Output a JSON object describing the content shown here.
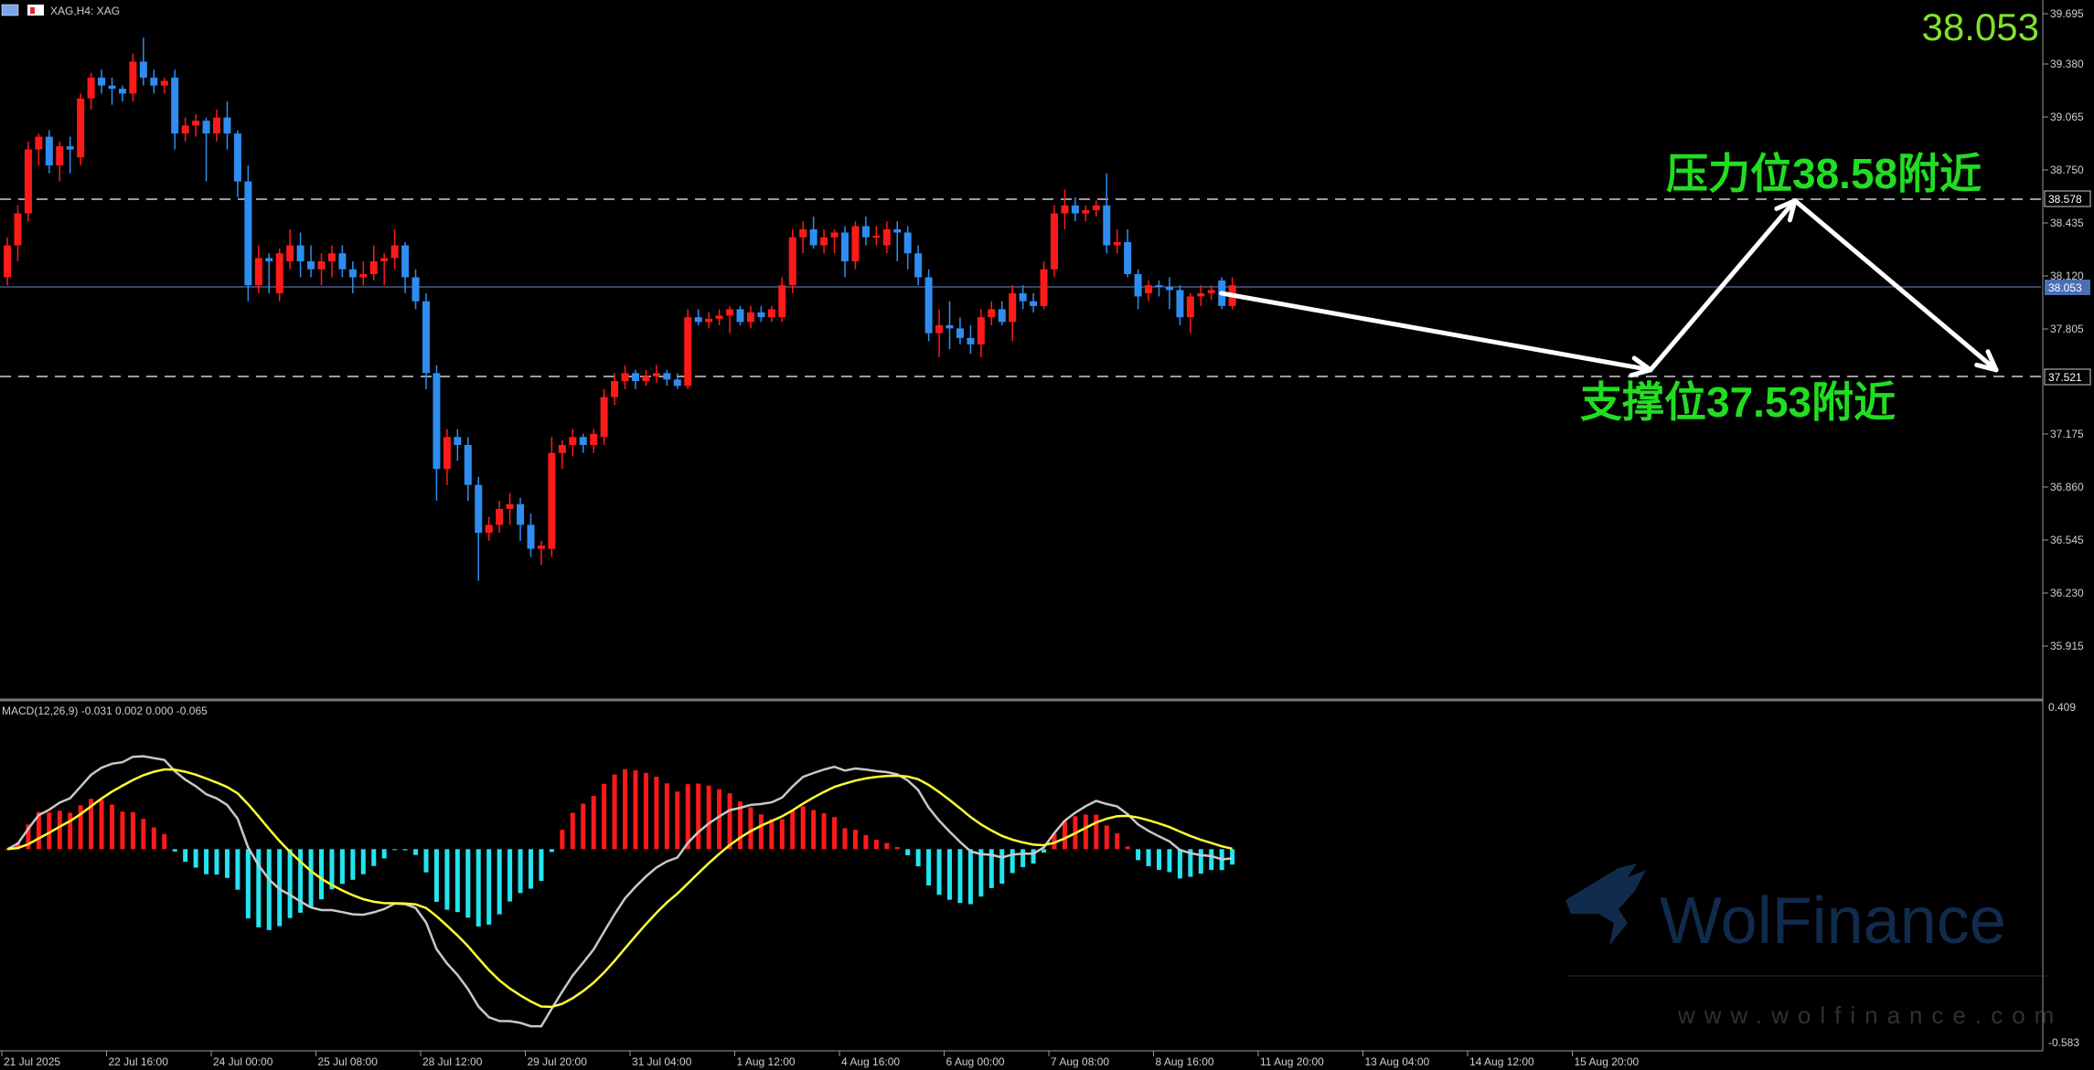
{
  "window": {
    "title": "XAG,H4:  XAG",
    "current_price_big": "38.053"
  },
  "annotations": {
    "resistance_text": "压力位",
    "resistance_price": "38.58",
    "resistance_suffix": "附近",
    "support_text": "支撑位",
    "support_price": "37.53",
    "support_suffix": "附近"
  },
  "watermark": {
    "brand": "WolFinance",
    "url": "www.wolfinance.com"
  },
  "price_axis": {
    "labels": [
      "39.695",
      "39.380",
      "39.065",
      "38.750",
      "38.435",
      "38.120",
      "37.805",
      "37.175",
      "36.860",
      "36.545",
      "36.230",
      "35.915"
    ],
    "marker_resistance": "38.578",
    "marker_current": "38.053",
    "marker_support": "37.521"
  },
  "macd": {
    "label": "MACD(12,26,9) -0.031 0.002 0.000 -0.065",
    "axis_max": "0.409",
    "axis_min": "-0.583"
  },
  "time_axis": {
    "labels": [
      "21 Jul 2025",
      "22 Jul 16:00",
      "24 Jul 00:00",
      "25 Jul 08:00",
      "28 Jul 12:00",
      "29 Jul 20:00",
      "31 Jul 04:00",
      "1 Aug 12:00",
      "4 Aug 16:00",
      "6 Aug 00:00",
      "7 Aug 08:00",
      "8 Aug 16:00",
      "11 Aug 20:00",
      "13 Aug 04:00",
      "14 Aug 12:00",
      "15 Aug 20:00"
    ]
  },
  "colors": {
    "bull": "#ff1a1a",
    "bear": "#2f8cf0",
    "doji": "#22c55e",
    "macd_pos": "#ff1a1a",
    "macd_neg": "#22e5f0",
    "signal": "#ffff33",
    "macd_line": "#c8c8c8",
    "annotation": "#22dd22",
    "big_price": "#7fe32a"
  },
  "chart_data": {
    "type": "candlestick",
    "symbol": "XAG",
    "timeframe": "H4",
    "ohlc": [
      [
        38.1,
        38.35,
        38.05,
        38.3
      ],
      [
        38.3,
        38.55,
        38.2,
        38.5
      ],
      [
        38.5,
        38.95,
        38.45,
        38.9
      ],
      [
        38.9,
        39.0,
        38.8,
        38.98
      ],
      [
        38.98,
        39.02,
        38.75,
        38.8
      ],
      [
        38.8,
        38.95,
        38.7,
        38.92
      ],
      [
        38.92,
        38.98,
        38.75,
        38.9
      ],
      [
        38.85,
        39.25,
        38.8,
        39.22
      ],
      [
        39.22,
        39.38,
        39.15,
        39.35
      ],
      [
        39.35,
        39.4,
        39.25,
        39.3
      ],
      [
        39.3,
        39.35,
        39.18,
        39.28
      ],
      [
        39.28,
        39.3,
        39.2,
        39.25
      ],
      [
        39.25,
        39.5,
        39.2,
        39.45
      ],
      [
        39.45,
        39.6,
        39.3,
        39.35
      ],
      [
        39.35,
        39.4,
        39.25,
        39.3
      ],
      [
        39.3,
        39.35,
        39.25,
        39.33
      ],
      [
        39.35,
        39.4,
        38.9,
        39.0
      ],
      [
        39.0,
        39.1,
        38.95,
        39.05
      ],
      [
        39.05,
        39.12,
        38.98,
        39.08
      ],
      [
        39.08,
        39.1,
        38.7,
        39.0
      ],
      [
        39.0,
        39.15,
        38.95,
        39.1
      ],
      [
        39.1,
        39.2,
        38.9,
        39.0
      ],
      [
        39.0,
        39.02,
        38.6,
        38.7
      ],
      [
        38.7,
        38.8,
        37.95,
        38.05
      ],
      [
        38.05,
        38.3,
        38.0,
        38.22
      ],
      [
        38.22,
        38.25,
        38.0,
        38.2
      ],
      [
        38.0,
        38.28,
        37.95,
        38.25
      ],
      [
        38.2,
        38.4,
        38.15,
        38.3
      ],
      [
        38.3,
        38.38,
        38.1,
        38.2
      ],
      [
        38.2,
        38.3,
        38.1,
        38.15
      ],
      [
        38.15,
        38.25,
        38.05,
        38.2
      ],
      [
        38.2,
        38.3,
        38.1,
        38.25
      ],
      [
        38.25,
        38.3,
        38.1,
        38.15
      ],
      [
        38.15,
        38.2,
        38.0,
        38.1
      ],
      [
        38.1,
        38.2,
        38.05,
        38.12
      ],
      [
        38.12,
        38.3,
        38.08,
        38.2
      ],
      [
        38.2,
        38.25,
        38.05,
        38.22
      ],
      [
        38.22,
        38.4,
        38.15,
        38.3
      ],
      [
        38.3,
        38.32,
        38.0,
        38.1
      ],
      [
        38.1,
        38.15,
        37.9,
        37.95
      ],
      [
        37.95,
        38.0,
        37.4,
        37.5
      ],
      [
        37.5,
        37.55,
        36.7,
        36.9
      ],
      [
        36.9,
        37.15,
        36.8,
        37.1
      ],
      [
        37.1,
        37.15,
        36.95,
        37.05
      ],
      [
        37.05,
        37.1,
        36.7,
        36.8
      ],
      [
        36.8,
        36.85,
        36.2,
        36.5
      ],
      [
        36.5,
        36.6,
        36.45,
        36.55
      ],
      [
        36.55,
        36.7,
        36.5,
        36.65
      ],
      [
        36.65,
        36.75,
        36.55,
        36.68
      ],
      [
        36.68,
        36.72,
        36.45,
        36.55
      ],
      [
        36.55,
        36.62,
        36.35,
        36.4
      ],
      [
        36.4,
        36.45,
        36.3,
        36.42
      ],
      [
        36.4,
        37.1,
        36.35,
        37.0
      ],
      [
        37.0,
        37.08,
        36.9,
        37.05
      ],
      [
        37.05,
        37.15,
        36.98,
        37.1
      ],
      [
        37.1,
        37.12,
        37.0,
        37.05
      ],
      [
        37.05,
        37.15,
        37.0,
        37.12
      ],
      [
        37.1,
        37.4,
        37.05,
        37.35
      ],
      [
        37.35,
        37.5,
        37.3,
        37.45
      ],
      [
        37.45,
        37.55,
        37.4,
        37.5
      ],
      [
        37.5,
        37.52,
        37.4,
        37.45
      ],
      [
        37.45,
        37.52,
        37.42,
        37.48
      ],
      [
        37.48,
        37.55,
        37.44,
        37.5
      ],
      [
        37.5,
        37.52,
        37.42,
        37.46
      ],
      [
        37.46,
        37.5,
        37.4,
        37.42
      ],
      [
        37.42,
        37.9,
        37.4,
        37.85
      ],
      [
        37.85,
        37.9,
        37.8,
        37.82
      ],
      [
        37.82,
        37.88,
        37.78,
        37.84
      ],
      [
        37.84,
        37.9,
        37.8,
        37.86
      ],
      [
        37.86,
        37.92,
        37.75,
        37.9
      ],
      [
        37.9,
        37.92,
        37.8,
        37.82
      ],
      [
        37.82,
        37.92,
        37.78,
        37.88
      ],
      [
        37.88,
        37.92,
        37.82,
        37.85
      ],
      [
        37.85,
        37.92,
        37.82,
        37.9
      ],
      [
        37.85,
        38.1,
        37.82,
        38.05
      ],
      [
        38.05,
        38.4,
        38.0,
        38.35
      ],
      [
        38.35,
        38.45,
        38.25,
        38.4
      ],
      [
        38.4,
        38.48,
        38.28,
        38.3
      ],
      [
        38.3,
        38.4,
        38.25,
        38.35
      ],
      [
        38.35,
        38.4,
        38.25,
        38.38
      ],
      [
        38.38,
        38.42,
        38.1,
        38.2
      ],
      [
        38.2,
        38.45,
        38.15,
        38.42
      ],
      [
        38.42,
        38.48,
        38.3,
        38.35
      ],
      [
        38.35,
        38.42,
        38.3,
        38.36
      ],
      [
        38.3,
        38.45,
        38.25,
        38.4
      ],
      [
        38.4,
        38.45,
        38.2,
        38.38
      ],
      [
        38.38,
        38.42,
        38.15,
        38.25
      ],
      [
        38.25,
        38.3,
        38.05,
        38.1
      ],
      [
        38.1,
        38.15,
        37.7,
        37.75
      ],
      [
        37.75,
        37.9,
        37.6,
        37.8
      ],
      [
        37.8,
        37.95,
        37.65,
        37.78
      ],
      [
        37.78,
        37.85,
        37.68,
        37.72
      ],
      [
        37.72,
        37.8,
        37.62,
        37.68
      ],
      [
        37.68,
        37.9,
        37.6,
        37.85
      ],
      [
        37.85,
        37.95,
        37.8,
        37.9
      ],
      [
        37.9,
        37.95,
        37.8,
        37.82
      ],
      [
        37.82,
        38.05,
        37.7,
        38.0
      ],
      [
        38.0,
        38.05,
        37.9,
        37.95
      ],
      [
        37.95,
        38.0,
        37.88,
        37.92
      ],
      [
        37.92,
        38.2,
        37.9,
        38.15
      ],
      [
        38.15,
        38.55,
        38.1,
        38.5
      ],
      [
        38.5,
        38.65,
        38.4,
        38.55
      ],
      [
        38.55,
        38.6,
        38.45,
        38.5
      ],
      [
        38.5,
        38.55,
        38.45,
        38.52
      ],
      [
        38.52,
        38.58,
        38.48,
        38.55
      ],
      [
        38.55,
        38.75,
        38.25,
        38.3
      ],
      [
        38.3,
        38.4,
        38.25,
        38.32
      ],
      [
        38.32,
        38.4,
        38.1,
        38.12
      ],
      [
        38.12,
        38.15,
        37.9,
        37.98
      ],
      [
        38.0,
        38.08,
        37.95,
        38.05
      ],
      [
        38.05,
        38.08,
        37.98,
        38.04
      ],
      [
        38.04,
        38.1,
        37.9,
        38.02
      ],
      [
        38.02,
        38.05,
        37.8,
        37.85
      ],
      [
        37.85,
        38.0,
        37.75,
        37.98
      ],
      [
        37.98,
        38.05,
        37.92,
        38.0
      ],
      [
        38.0,
        38.05,
        37.96,
        38.02
      ],
      [
        38.08,
        38.1,
        37.9,
        37.92
      ],
      [
        37.92,
        38.1,
        37.9,
        38.05
      ]
    ],
    "resistance": 38.578,
    "support": 37.521,
    "current": 38.053,
    "ylim": [
      35.7,
      39.75
    ],
    "projection": [
      [
        38.0,
        37.52
      ],
      [
        37.52,
        38.58
      ],
      [
        38.58,
        37.52
      ]
    ],
    "macd_ylim": [
      -0.583,
      0.409
    ]
  }
}
